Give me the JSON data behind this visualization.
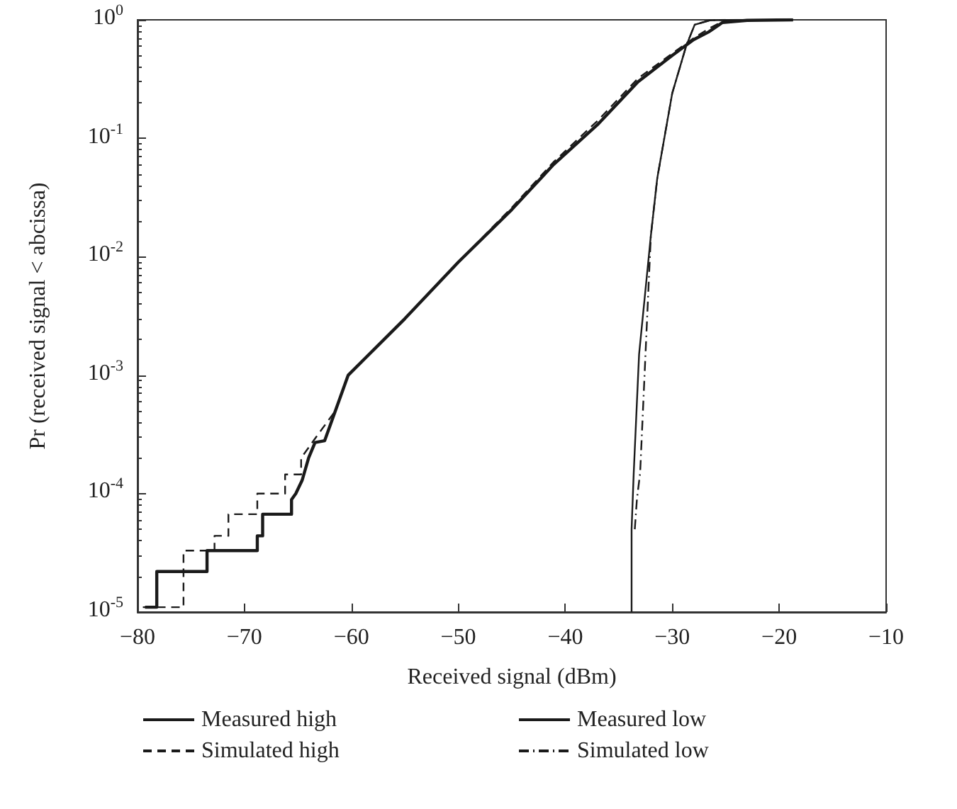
{
  "chart_data": {
    "type": "line",
    "xlabel": "Received signal (dBm)",
    "ylabel": "Pr (received signal < abcissa)",
    "xlim": [
      -80,
      -10
    ],
    "xticks": [
      -80,
      -70,
      -60,
      -50,
      -40,
      -30,
      -20,
      -10
    ],
    "ylim": [
      1e-05,
      1
    ],
    "yticks": [
      {
        "value": 1e-05,
        "label": "10$^{-5}$"
      },
      {
        "value": 0.0001,
        "label": "10$^{-4}$"
      },
      {
        "value": 0.001,
        "label": "10$^{-3}$"
      },
      {
        "value": 0.01,
        "label": "10$^{-2}$"
      },
      {
        "value": 0.1,
        "label": "10$^{-1}$"
      },
      {
        "value": 1,
        "label": "10$^{0}$"
      }
    ],
    "log": "y",
    "grid": false,
    "legend": "bottom",
    "marker": "none",
    "series": [
      {
        "name": "Measured high",
        "color": "#1a1a1a",
        "line_style": "solid",
        "x": [
          -79.3,
          -78.2,
          -78.2,
          -73.5,
          -73.5,
          -68.8,
          -68.8,
          -68.3,
          -68.3,
          -65.6,
          -65.6,
          -65.2,
          -64.6,
          -64.0,
          -63.4,
          -62.5,
          -61.5,
          -60.3,
          -55,
          -50,
          -45,
          -41.1,
          -37,
          -33.2,
          -30,
          -28,
          -26.6,
          -25.3,
          -23,
          -18.7
        ],
        "values": [
          1.1e-05,
          1.1e-05,
          2.2e-05,
          2.2e-05,
          3.3e-05,
          3.3e-05,
          4.4e-05,
          4.4e-05,
          6.7e-05,
          6.7e-05,
          8.9e-05,
          0.0001,
          0.00013,
          0.0002,
          0.00027,
          0.00028,
          0.0005,
          0.001,
          0.003,
          0.009,
          0.025,
          0.06,
          0.13,
          0.3,
          0.5,
          0.68,
          0.79,
          0.95,
          0.99,
          1
        ]
      },
      {
        "name": "Measured low",
        "color": "#1a1a1a",
        "line_style": "solid",
        "x": [
          -33.8,
          -33.8,
          -33.6,
          -33.1,
          -32.0,
          -31.4,
          -30.0,
          -28.7,
          -27.9,
          -26.5,
          -24,
          -18.7
        ],
        "values": [
          1e-05,
          5e-05,
          0.00015,
          0.0015,
          0.015,
          0.046,
          0.24,
          0.6,
          0.91,
          0.99,
          1,
          1
        ]
      },
      {
        "name": "Simulated high",
        "color": "#1a1a1a",
        "line_style": "dashed",
        "x": [
          -79.5,
          -75.7,
          -75.7,
          -72.8,
          -72.8,
          -71.5,
          -71.5,
          -68.8,
          -68.8,
          -66.2,
          -66.2,
          -64.7,
          -64.7,
          -63.3,
          -61.5,
          -60.3,
          -55,
          -50,
          -45,
          -41.1,
          -37,
          -33.2,
          -30,
          -28,
          -26.5,
          -25
        ],
        "values": [
          1.1e-05,
          1.1e-05,
          3.3e-05,
          3.3e-05,
          4.4e-05,
          4.4e-05,
          6.7e-05,
          6.7e-05,
          0.0001,
          0.0001,
          0.000145,
          0.000145,
          0.0002,
          0.0003,
          0.0005,
          0.001,
          0.003,
          0.009,
          0.026,
          0.063,
          0.14,
          0.32,
          0.52,
          0.7,
          0.85,
          1
        ]
      },
      {
        "name": "Simulated low",
        "color": "#1a1a1a",
        "line_style": "dashdot",
        "x": [
          -33.5,
          -33.3,
          -33.0,
          -32.0,
          -31.4,
          -30.0,
          -28.7,
          -27.9,
          -26.5,
          -25
        ],
        "values": [
          5e-05,
          9e-05,
          0.00015,
          0.015,
          0.046,
          0.24,
          0.6,
          0.91,
          0.99,
          1
        ]
      }
    ]
  }
}
